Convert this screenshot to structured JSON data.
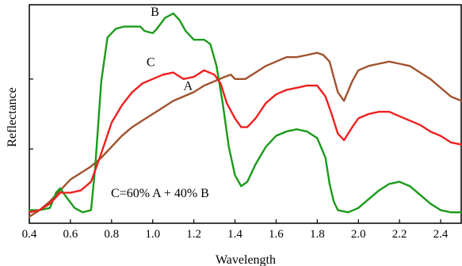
{
  "chart_data": {
    "type": "line",
    "xlabel": "Wavelength",
    "ylabel": "Reflectance",
    "xlim": [
      0.4,
      2.5
    ],
    "ylim": [
      0,
      100
    ],
    "x_ticks": [
      "0.4",
      "0.6",
      "0.8",
      "1.0",
      "1.2",
      "1.4",
      "1.6",
      "1.8",
      "2.0",
      "2.2",
      "2.4"
    ],
    "x_tick_values": [
      0.4,
      0.6,
      0.8,
      1.0,
      1.2,
      1.4,
      1.6,
      1.8,
      2.0,
      2.2,
      2.4
    ],
    "y_tick_values": [
      34,
      66
    ],
    "annotation": "C=60% A + 40% B",
    "grid": false,
    "series": [
      {
        "name": "A",
        "color": "#a0522d",
        "label_at": [
          1.15,
          61
        ],
        "points": [
          [
            0.4,
            3
          ],
          [
            0.45,
            6
          ],
          [
            0.5,
            10
          ],
          [
            0.55,
            15
          ],
          [
            0.6,
            20
          ],
          [
            0.65,
            23
          ],
          [
            0.7,
            26
          ],
          [
            0.75,
            30
          ],
          [
            0.8,
            35
          ],
          [
            0.85,
            40
          ],
          [
            0.9,
            44
          ],
          [
            0.95,
            47
          ],
          [
            1.0,
            50
          ],
          [
            1.05,
            53
          ],
          [
            1.1,
            56
          ],
          [
            1.15,
            58
          ],
          [
            1.2,
            60
          ],
          [
            1.25,
            63
          ],
          [
            1.3,
            65
          ],
          [
            1.35,
            67
          ],
          [
            1.38,
            68
          ],
          [
            1.4,
            66
          ],
          [
            1.45,
            66
          ],
          [
            1.5,
            69
          ],
          [
            1.55,
            72
          ],
          [
            1.6,
            74
          ],
          [
            1.65,
            76
          ],
          [
            1.7,
            76
          ],
          [
            1.75,
            77
          ],
          [
            1.8,
            78
          ],
          [
            1.83,
            77
          ],
          [
            1.86,
            74
          ],
          [
            1.9,
            60
          ],
          [
            1.93,
            56
          ],
          [
            1.97,
            65
          ],
          [
            2.0,
            70
          ],
          [
            2.05,
            72
          ],
          [
            2.1,
            73
          ],
          [
            2.15,
            74
          ],
          [
            2.2,
            73
          ],
          [
            2.25,
            72
          ],
          [
            2.3,
            69
          ],
          [
            2.35,
            66
          ],
          [
            2.4,
            62
          ],
          [
            2.45,
            58
          ],
          [
            2.5,
            56
          ]
        ]
      },
      {
        "name": "B",
        "color": "#1a9a1a",
        "label_at": [
          0.99,
          95
        ],
        "points": [
          [
            0.4,
            6
          ],
          [
            0.45,
            6
          ],
          [
            0.5,
            7
          ],
          [
            0.53,
            14
          ],
          [
            0.55,
            16
          ],
          [
            0.58,
            12
          ],
          [
            0.62,
            7
          ],
          [
            0.66,
            5
          ],
          [
            0.7,
            6
          ],
          [
            0.72,
            25
          ],
          [
            0.75,
            65
          ],
          [
            0.78,
            85
          ],
          [
            0.82,
            89
          ],
          [
            0.86,
            90
          ],
          [
            0.9,
            90
          ],
          [
            0.94,
            90
          ],
          [
            0.96,
            88
          ],
          [
            1.0,
            87
          ],
          [
            1.02,
            89
          ],
          [
            1.06,
            94
          ],
          [
            1.1,
            96
          ],
          [
            1.13,
            93
          ],
          [
            1.16,
            88
          ],
          [
            1.2,
            84
          ],
          [
            1.25,
            84
          ],
          [
            1.28,
            82
          ],
          [
            1.31,
            72
          ],
          [
            1.34,
            55
          ],
          [
            1.37,
            35
          ],
          [
            1.4,
            22
          ],
          [
            1.43,
            17
          ],
          [
            1.46,
            19
          ],
          [
            1.5,
            27
          ],
          [
            1.55,
            35
          ],
          [
            1.6,
            40
          ],
          [
            1.65,
            42
          ],
          [
            1.7,
            43
          ],
          [
            1.75,
            42
          ],
          [
            1.8,
            39
          ],
          [
            1.84,
            30
          ],
          [
            1.86,
            18
          ],
          [
            1.88,
            10
          ],
          [
            1.9,
            6
          ],
          [
            1.95,
            5
          ],
          [
            2.0,
            7
          ],
          [
            2.05,
            11
          ],
          [
            2.1,
            15
          ],
          [
            2.15,
            18
          ],
          [
            2.2,
            19
          ],
          [
            2.25,
            17
          ],
          [
            2.3,
            13
          ],
          [
            2.35,
            9
          ],
          [
            2.4,
            6
          ],
          [
            2.45,
            5
          ],
          [
            2.5,
            5
          ]
        ]
      },
      {
        "name": "C",
        "color": "#ee2020",
        "label_at": [
          0.97,
          72
        ],
        "points": [
          [
            0.4,
            5
          ],
          [
            0.45,
            6
          ],
          [
            0.5,
            9
          ],
          [
            0.55,
            14
          ],
          [
            0.6,
            14
          ],
          [
            0.65,
            15
          ],
          [
            0.7,
            19
          ],
          [
            0.75,
            32
          ],
          [
            0.8,
            46
          ],
          [
            0.85,
            54
          ],
          [
            0.9,
            60
          ],
          [
            0.95,
            64
          ],
          [
            1.0,
            66
          ],
          [
            1.05,
            68
          ],
          [
            1.1,
            69
          ],
          [
            1.15,
            66
          ],
          [
            1.2,
            67
          ],
          [
            1.25,
            70
          ],
          [
            1.3,
            68
          ],
          [
            1.33,
            64
          ],
          [
            1.36,
            55
          ],
          [
            1.4,
            48
          ],
          [
            1.43,
            44
          ],
          [
            1.46,
            44
          ],
          [
            1.5,
            48
          ],
          [
            1.55,
            55
          ],
          [
            1.6,
            59
          ],
          [
            1.65,
            61
          ],
          [
            1.7,
            62
          ],
          [
            1.75,
            63
          ],
          [
            1.8,
            63
          ],
          [
            1.84,
            58
          ],
          [
            1.87,
            50
          ],
          [
            1.9,
            41
          ],
          [
            1.93,
            38
          ],
          [
            1.97,
            44
          ],
          [
            2.0,
            48
          ],
          [
            2.05,
            50
          ],
          [
            2.1,
            51
          ],
          [
            2.15,
            51
          ],
          [
            2.2,
            49
          ],
          [
            2.25,
            47
          ],
          [
            2.3,
            45
          ],
          [
            2.35,
            42
          ],
          [
            2.4,
            40
          ],
          [
            2.45,
            37
          ],
          [
            2.5,
            36
          ]
        ]
      }
    ]
  }
}
